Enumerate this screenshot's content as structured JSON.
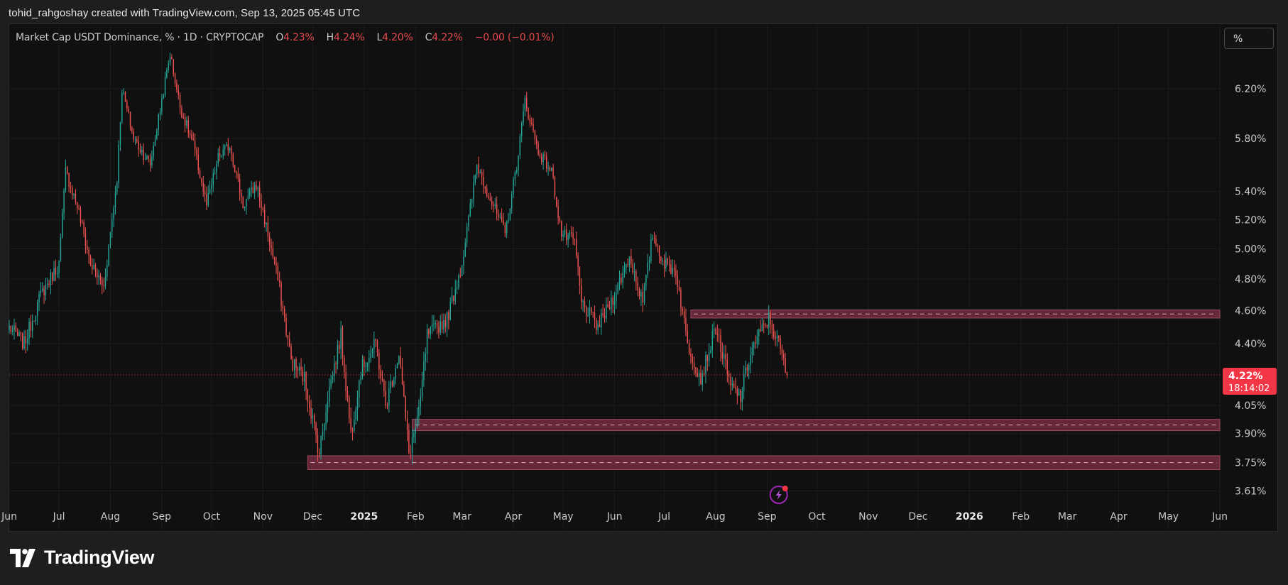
{
  "header": {
    "attribution": "tohid_rahgoshay created with TradingView.com, Sep 13, 2025 05:45 UTC"
  },
  "legend": {
    "symbol": "Market Cap USDT Dominance, % · 1D · CRYPTOCAP",
    "o_label": "O",
    "o_value": "4.23%",
    "h_label": "H",
    "h_value": "4.24%",
    "l_label": "L",
    "l_value": "4.20%",
    "c_label": "C",
    "c_value": "4.22%",
    "change": "−0.00 (−0.01%)"
  },
  "scale_button": {
    "label": "%"
  },
  "footer": {
    "brand": "TradingView"
  },
  "colors": {
    "up": "#26a69a",
    "down": "#ef5350",
    "zone_fill": "#6b2a3c",
    "zone_border": "#9c4a62",
    "price_tag": "#f23645",
    "background": "#101010",
    "grid": "#1c1c1c"
  },
  "icons": {
    "event": "lightning-icon",
    "logo": "tradingview-logo-icon"
  },
  "chart_data": {
    "type": "candlestick",
    "title": "Market Cap USDT Dominance, % · 1D · CRYPTOCAP",
    "scale": "log",
    "ylim": [
      3.53,
      6.75
    ],
    "y_ticks": [
      6.2,
      5.8,
      5.4,
      5.2,
      5.0,
      4.8,
      4.6,
      4.4,
      4.05,
      3.9,
      3.75,
      3.61
    ],
    "y_tick_labels": [
      "6.20%",
      "5.80%",
      "5.40%",
      "5.20%",
      "5.00%",
      "4.80%",
      "4.60%",
      "4.40%",
      "4.05%",
      "3.90%",
      "3.75%",
      "3.61%"
    ],
    "x_range": [
      "2024-06-01",
      "2026-06-01"
    ],
    "x_ticks": [
      {
        "date": "2024-06-01",
        "label": "Jun",
        "bold": false
      },
      {
        "date": "2024-07-01",
        "label": "Jul",
        "bold": false
      },
      {
        "date": "2024-08-01",
        "label": "Aug",
        "bold": false
      },
      {
        "date": "2024-09-01",
        "label": "Sep",
        "bold": false
      },
      {
        "date": "2024-10-01",
        "label": "Oct",
        "bold": false
      },
      {
        "date": "2024-11-01",
        "label": "Nov",
        "bold": false
      },
      {
        "date": "2024-12-01",
        "label": "Dec",
        "bold": false
      },
      {
        "date": "2025-01-01",
        "label": "2025",
        "bold": true
      },
      {
        "date": "2025-02-01",
        "label": "Feb",
        "bold": false
      },
      {
        "date": "2025-03-01",
        "label": "Mar",
        "bold": false
      },
      {
        "date": "2025-04-01",
        "label": "Apr",
        "bold": false
      },
      {
        "date": "2025-05-01",
        "label": "May",
        "bold": false
      },
      {
        "date": "2025-06-01",
        "label": "Jun",
        "bold": false
      },
      {
        "date": "2025-07-01",
        "label": "Jul",
        "bold": false
      },
      {
        "date": "2025-08-01",
        "label": "Aug",
        "bold": false
      },
      {
        "date": "2025-09-01",
        "label": "Sep",
        "bold": false
      },
      {
        "date": "2025-10-01",
        "label": "Oct",
        "bold": false
      },
      {
        "date": "2025-11-01",
        "label": "Nov",
        "bold": false
      },
      {
        "date": "2025-12-01",
        "label": "Dec",
        "bold": false
      },
      {
        "date": "2026-01-01",
        "label": "2026",
        "bold": true
      },
      {
        "date": "2026-02-01",
        "label": "Feb",
        "bold": false
      },
      {
        "date": "2026-03-01",
        "label": "Mar",
        "bold": false
      },
      {
        "date": "2026-04-01",
        "label": "Apr",
        "bold": false
      },
      {
        "date": "2026-05-01",
        "label": "May",
        "bold": false
      },
      {
        "date": "2026-06-01",
        "label": "Jun",
        "bold": false
      }
    ],
    "series": [
      {
        "name": "Market Cap USDT Dominance",
        "close_path": [
          [
            "2024-06-01",
            4.5
          ],
          [
            "2024-06-10",
            4.4
          ],
          [
            "2024-06-20",
            4.7
          ],
          [
            "2024-07-01",
            4.9
          ],
          [
            "2024-07-05",
            5.55
          ],
          [
            "2024-07-12",
            5.3
          ],
          [
            "2024-07-20",
            4.9
          ],
          [
            "2024-07-28",
            4.75
          ],
          [
            "2024-08-05",
            5.5
          ],
          [
            "2024-08-08",
            6.2
          ],
          [
            "2024-08-15",
            5.8
          ],
          [
            "2024-08-25",
            5.6
          ],
          [
            "2024-09-06",
            6.5
          ],
          [
            "2024-09-12",
            6.05
          ],
          [
            "2024-09-20",
            5.75
          ],
          [
            "2024-09-28",
            5.3
          ],
          [
            "2024-10-05",
            5.65
          ],
          [
            "2024-10-12",
            5.75
          ],
          [
            "2024-10-20",
            5.3
          ],
          [
            "2024-10-28",
            5.45
          ],
          [
            "2024-11-02",
            5.2
          ],
          [
            "2024-11-10",
            4.8
          ],
          [
            "2024-11-18",
            4.3
          ],
          [
            "2024-11-26",
            4.2
          ],
          [
            "2024-12-05",
            3.8
          ],
          [
            "2024-12-10",
            4.1
          ],
          [
            "2024-12-18",
            4.45
          ],
          [
            "2024-12-24",
            3.9
          ],
          [
            "2024-12-30",
            4.25
          ],
          [
            "2025-01-08",
            4.4
          ],
          [
            "2025-01-14",
            4.05
          ],
          [
            "2025-01-22",
            4.35
          ],
          [
            "2025-01-28",
            3.8
          ],
          [
            "2025-02-03",
            4.0
          ],
          [
            "2025-02-08",
            4.45
          ],
          [
            "2025-02-20",
            4.55
          ],
          [
            "2025-03-01",
            4.9
          ],
          [
            "2025-03-10",
            5.6
          ],
          [
            "2025-03-18",
            5.35
          ],
          [
            "2025-03-27",
            5.1
          ],
          [
            "2025-04-03",
            5.6
          ],
          [
            "2025-04-08",
            6.1
          ],
          [
            "2025-04-16",
            5.7
          ],
          [
            "2025-04-24",
            5.55
          ],
          [
            "2025-04-30",
            5.1
          ],
          [
            "2025-05-08",
            5.05
          ],
          [
            "2025-05-12",
            4.65
          ],
          [
            "2025-05-22",
            4.5
          ],
          [
            "2025-06-01",
            4.7
          ],
          [
            "2025-06-10",
            4.95
          ],
          [
            "2025-06-18",
            4.65
          ],
          [
            "2025-06-24",
            5.1
          ],
          [
            "2025-07-01",
            4.9
          ],
          [
            "2025-07-08",
            4.85
          ],
          [
            "2025-07-15",
            4.4
          ],
          [
            "2025-07-23",
            4.2
          ],
          [
            "2025-08-01",
            4.5
          ],
          [
            "2025-08-10",
            4.15
          ],
          [
            "2025-08-16",
            4.1
          ],
          [
            "2025-08-22",
            4.35
          ],
          [
            "2025-08-27",
            4.45
          ],
          [
            "2025-09-02",
            4.55
          ],
          [
            "2025-09-08",
            4.4
          ],
          [
            "2025-09-13",
            4.22
          ]
        ],
        "last": {
          "date": "2025-09-13",
          "open": 4.23,
          "high": 4.24,
          "low": 4.2,
          "close": 4.22
        }
      }
    ],
    "zones": [
      {
        "from": "2025-07-17",
        "low": 4.555,
        "high": 4.605,
        "mid": 4.58
      },
      {
        "from": "2025-01-30",
        "low": 3.915,
        "high": 3.975,
        "mid": 3.945
      },
      {
        "from": "2024-11-28",
        "low": 3.715,
        "high": 3.785,
        "mid": 3.75
      }
    ],
    "last_price_label": "4.22%",
    "countdown_label": "18:14:02",
    "grid": true,
    "legend_position": "top-left"
  }
}
